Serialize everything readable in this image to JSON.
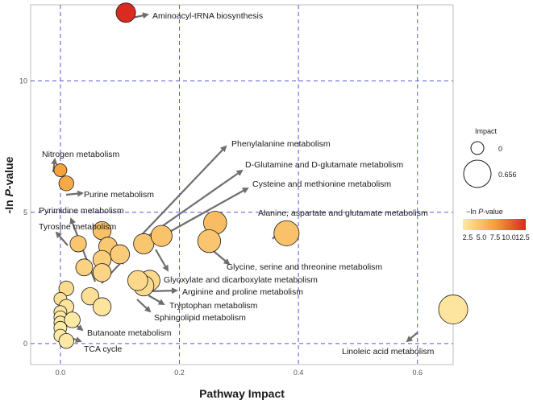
{
  "chart_data": {
    "type": "scatter",
    "title": "",
    "xlabel": "Pathway Impact",
    "ylabel": "-In P-value",
    "ylabel_main": "-In ",
    "ylabel_italic": "P",
    "ylabel_tail": "-value",
    "xlim": [
      -0.05,
      0.66
    ],
    "ylim": [
      -0.8,
      12.9
    ],
    "x_ticks": [
      0.0,
      0.2,
      0.4,
      0.6
    ],
    "x_tick_labels": [
      "0.0",
      "0.2",
      "0.4",
      "0.6"
    ],
    "y_ticks": [
      0,
      5,
      10
    ],
    "y_tick_labels": [
      "0",
      "5",
      "10"
    ],
    "grid": true,
    "grid_style": "dashed",
    "grid_color": "#5a55e0",
    "color_scale": {
      "low": "#fde9a4",
      "mid": "#f5a23a",
      "high": "#d92b1f",
      "min": 1.0,
      "max": 12.5
    },
    "points": [
      {
        "x": 0.11,
        "y": 12.6
      },
      {
        "x": 0.0,
        "y": 6.6
      },
      {
        "x": 0.01,
        "y": 6.1
      },
      {
        "x": 0.03,
        "y": 3.8
      },
      {
        "x": 0.07,
        "y": 4.3
      },
      {
        "x": 0.08,
        "y": 3.7
      },
      {
        "x": 0.07,
        "y": 3.2
      },
      {
        "x": 0.1,
        "y": 3.4
      },
      {
        "x": 0.04,
        "y": 2.9
      },
      {
        "x": 0.07,
        "y": 2.7
      },
      {
        "x": 0.14,
        "y": 3.8
      },
      {
        "x": 0.17,
        "y": 4.1
      },
      {
        "x": 0.26,
        "y": 4.6
      },
      {
        "x": 0.25,
        "y": 3.9
      },
      {
        "x": 0.38,
        "y": 4.2
      },
      {
        "x": 0.15,
        "y": 2.4
      },
      {
        "x": 0.14,
        "y": 2.2
      },
      {
        "x": 0.13,
        "y": 2.4
      },
      {
        "x": 0.01,
        "y": 2.1
      },
      {
        "x": 0.0,
        "y": 1.7
      },
      {
        "x": 0.01,
        "y": 1.4
      },
      {
        "x": 0.05,
        "y": 1.8
      },
      {
        "x": 0.07,
        "y": 1.4
      },
      {
        "x": 0.0,
        "y": 1.2
      },
      {
        "x": 0.0,
        "y": 1.0
      },
      {
        "x": 0.0,
        "y": 0.8
      },
      {
        "x": 0.02,
        "y": 0.9
      },
      {
        "x": 0.0,
        "y": 0.6
      },
      {
        "x": 0.0,
        "y": 0.3
      },
      {
        "x": 0.01,
        "y": 0.1
      },
      {
        "x": 0.66,
        "y": 1.3
      }
    ],
    "annotations": [
      {
        "text": "Aminoacyl-tRNA biosynthesis"
      },
      {
        "text": "Nitrogen metabolism"
      },
      {
        "text": "Purine metabolism"
      },
      {
        "text": "Pyrimidine metabolism"
      },
      {
        "text": "Tyrosine metabolism"
      },
      {
        "text": "Phenylalanine metabolism"
      },
      {
        "text": "D-Glutamine and D-glutamate metabolism"
      },
      {
        "text": "Cysteine and methionine metabolism"
      },
      {
        "text": "Alanine, aspartate and glutamate metabolism"
      },
      {
        "text": "Glycine, serine and threonine metabolism"
      },
      {
        "text": "Glyoxylate and dicarboxylate metabolism"
      },
      {
        "text": "Arginine and proline metabolism"
      },
      {
        "text": "Tryptophan metabolism"
      },
      {
        "text": "Sphingolipid metabolism"
      },
      {
        "text": "Butanoate metabolism"
      },
      {
        "text": "TCA cycle"
      },
      {
        "text": "Linoleic acid metabolism"
      }
    ],
    "legend_size": {
      "title": "Impact",
      "entries": [
        {
          "label": "0",
          "value": 0
        },
        {
          "label": "0.656",
          "value": 0.656
        }
      ]
    },
    "legend_color": {
      "title_main": "−In ",
      "title_italic": "P",
      "title_tail": "-value",
      "tick_labels": [
        "2.5",
        "5.0",
        "7.5",
        "10.0",
        "12.5"
      ],
      "tick_values": [
        2.5,
        5.0,
        7.5,
        10.0,
        12.5
      ]
    }
  }
}
